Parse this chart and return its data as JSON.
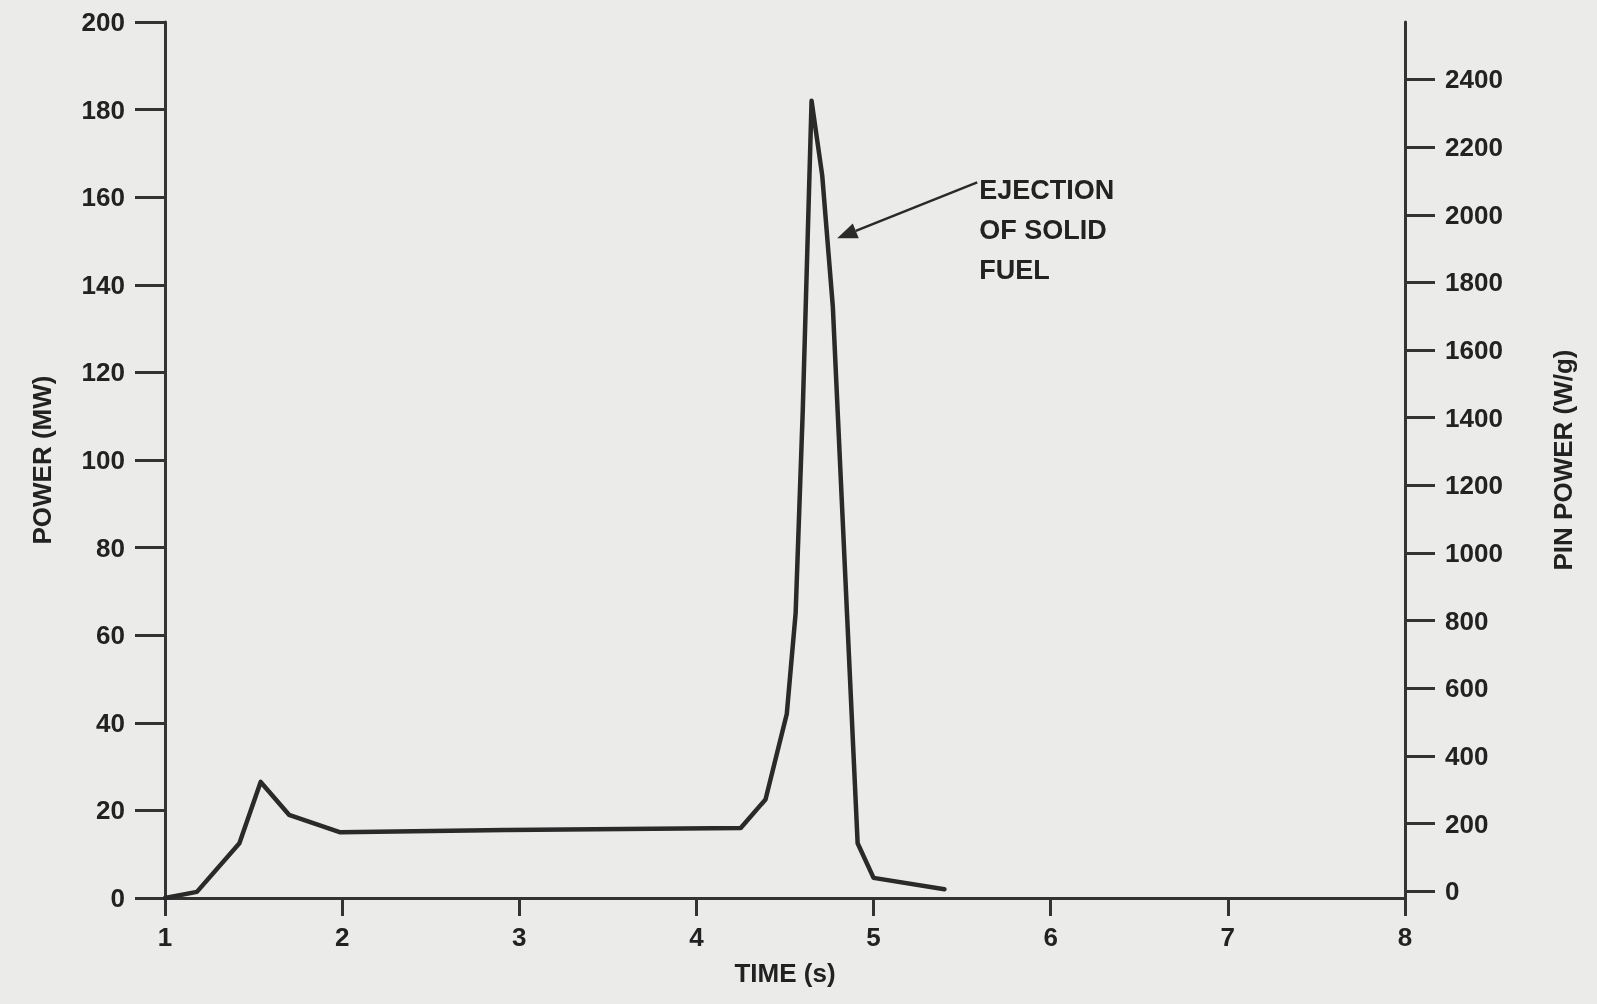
{
  "chart_data": {
    "type": "line",
    "xlabel": "TIME (s)",
    "ylabel": "POWER (MW)",
    "y2label": "PIN POWER (W/g)",
    "x": [
      1,
      1.18,
      1.42,
      1.54,
      1.7,
      1.99,
      2.92,
      4.25,
      4.39,
      4.51,
      4.56,
      4.6,
      4.65,
      4.71,
      4.77,
      4.85,
      4.91,
      5.0,
      5.4
    ],
    "series": [
      {
        "color": "#2a2a2a",
        "values": [
          0,
          1.4,
          12.5,
          26.5,
          19,
          15,
          15.5,
          16,
          22.5,
          42,
          65,
          111,
          182,
          165,
          135,
          65,
          12.5,
          4.6,
          2
        ]
      }
    ],
    "xlim": [
      1,
      8
    ],
    "xticks": [
      1,
      2,
      3,
      4,
      5,
      6,
      7,
      8
    ],
    "ylim": [
      0,
      200
    ],
    "yticks": [
      0,
      20,
      40,
      60,
      80,
      100,
      120,
      140,
      160,
      180,
      200
    ],
    "y2lim": [
      -20,
      2570
    ],
    "y2ticks": [
      0,
      200,
      400,
      600,
      800,
      1000,
      1200,
      1400,
      1600,
      1800,
      2000,
      2200,
      2400
    ],
    "annotations": [
      "EJECTION OF SOLID FUEL"
    ],
    "grid": false,
    "marker": "none",
    "line_style": "solid"
  }
}
